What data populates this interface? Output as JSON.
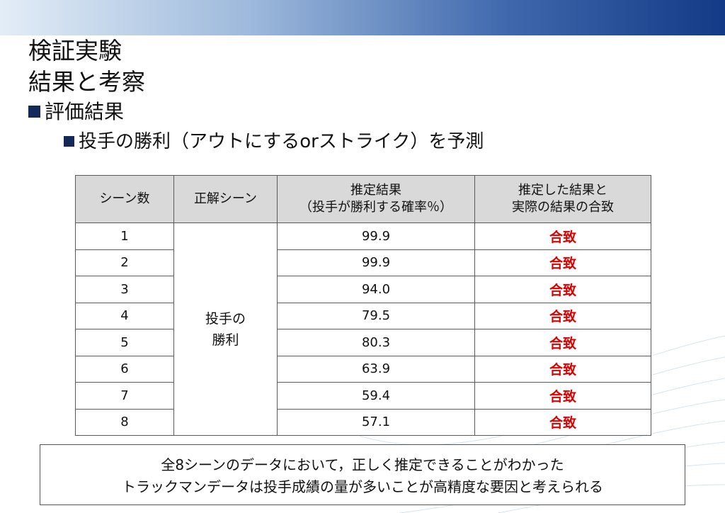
{
  "slide": {
    "title_line1": "検証実験",
    "title_line2": "結果と考察",
    "bullet1": "評価結果",
    "bullet2": "投手の勝利（アウトにするorストライク）を予測"
  },
  "table": {
    "headers": {
      "scene_count": "シーン数",
      "correct_scene": "正解シーン",
      "estimate_line1": "推定結果",
      "estimate_line2": "（投手が勝利する確率％）",
      "match_line1": "推定した結果と",
      "match_line2": "実際の結果の合致"
    },
    "correct_scene_line1": "投手の",
    "correct_scene_line2": "勝利",
    "rows": [
      {
        "scene": "1",
        "estimate": "99.9",
        "match": "合致"
      },
      {
        "scene": "2",
        "estimate": "99.9",
        "match": "合致"
      },
      {
        "scene": "3",
        "estimate": "94.0",
        "match": "合致"
      },
      {
        "scene": "4",
        "estimate": "79.5",
        "match": "合致"
      },
      {
        "scene": "5",
        "estimate": "80.3",
        "match": "合致"
      },
      {
        "scene": "6",
        "estimate": "63.9",
        "match": "合致"
      },
      {
        "scene": "7",
        "estimate": "59.4",
        "match": "合致"
      },
      {
        "scene": "8",
        "estimate": "57.1",
        "match": "合致"
      }
    ]
  },
  "conclusion": {
    "line1": "全8シーンのデータにおいて，正しく推定できることがわかった",
    "line2": "トラックマンデータは投手成績の量が多いことが高精度な要因と考えられる"
  },
  "colors": {
    "match_text": "#e00000",
    "header_bg": "#d9d9d9",
    "bullet": "#14285a",
    "top_bar_dark": "#133a86"
  }
}
